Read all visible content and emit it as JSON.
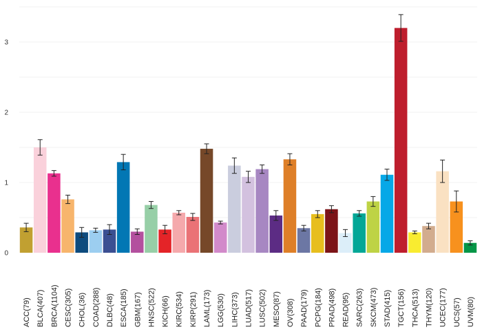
{
  "chart_data": {
    "type": "bar",
    "title": "",
    "xlabel": "",
    "ylabel": "",
    "ylim": [
      0,
      3.5
    ],
    "yticks": [
      0,
      1,
      2,
      3
    ],
    "grid": true,
    "legend": "none",
    "categories": [
      "ACC(79)",
      "BLCA(407)",
      "BRCA(1104)",
      "CESC(305)",
      "CHOL(36)",
      "COAD(288)",
      "DLBC(48)",
      "ESCA(185)",
      "GBM(167)",
      "HNSC(522)",
      "KICH(66)",
      "KIRC(534)",
      "KIRP(291)",
      "LAML(173)",
      "LGG(530)",
      "LIHC(373)",
      "LUAD(517)",
      "LUSC(502)",
      "MESO(87)",
      "OV(308)",
      "PAAD(179)",
      "PCPG(184)",
      "PRAD(498)",
      "READ(95)",
      "SARC(263)",
      "SKCM(473)",
      "STAD(415)",
      "TGCT(156)",
      "THCA(513)",
      "THYM(120)",
      "UCEC(177)",
      "UCS(57)",
      "UVM(80)"
    ],
    "values": [
      0.36,
      1.5,
      1.13,
      0.76,
      0.29,
      0.32,
      0.33,
      1.29,
      0.3,
      0.68,
      0.33,
      0.57,
      0.51,
      1.48,
      0.43,
      1.24,
      1.08,
      1.19,
      0.53,
      1.33,
      0.35,
      0.55,
      0.62,
      0.28,
      0.56,
      0.73,
      1.11,
      3.2,
      0.29,
      0.38,
      1.16,
      0.73,
      0.14
    ],
    "errors": [
      0.06,
      0.11,
      0.04,
      0.06,
      0.07,
      0.03,
      0.07,
      0.11,
      0.04,
      0.05,
      0.06,
      0.03,
      0.05,
      0.07,
      0.02,
      0.11,
      0.08,
      0.06,
      0.07,
      0.08,
      0.04,
      0.05,
      0.05,
      0.05,
      0.04,
      0.07,
      0.08,
      0.19,
      0.02,
      0.04,
      0.16,
      0.15,
      0.03
    ],
    "colors": [
      "#C1A031",
      "#FAD1DB",
      "#E9308E",
      "#F7B56C",
      "#0D4B7E",
      "#9CCEF0",
      "#3B4F92",
      "#0277B4",
      "#B3509E",
      "#97CFA7",
      "#E42428",
      "#F5A9AC",
      "#EA7276",
      "#764829",
      "#D28ACA",
      "#CACDDE",
      "#D3C1DF",
      "#A787C2",
      "#5C2C84",
      "#DE7F28",
      "#6C77A4",
      "#E7BE1E",
      "#7C1418",
      "#DCEEF9",
      "#03A797",
      "#BED345",
      "#06A8E7",
      "#BE1E2D",
      "#F9EC30",
      "#D2AC8E",
      "#FAE1C2",
      "#F7911E",
      "#059647"
    ]
  }
}
